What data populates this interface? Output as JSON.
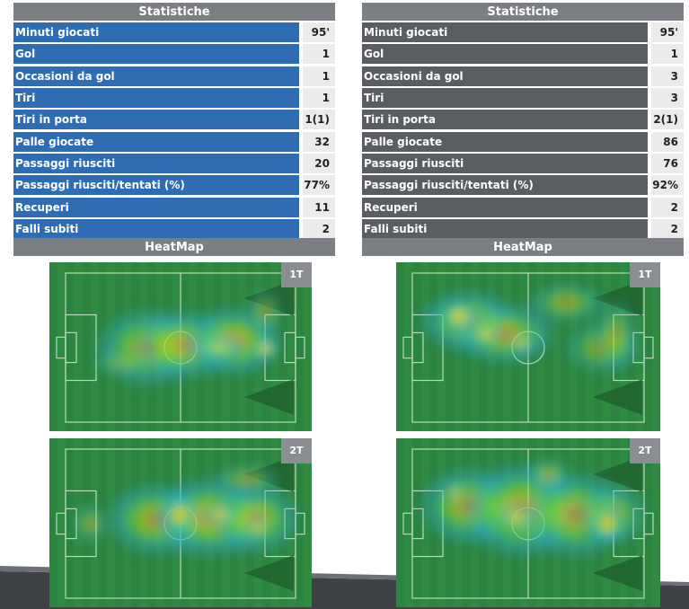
{
  "left": {
    "title": "Statistiche",
    "stats": [
      {
        "label": "Minuti giocati",
        "value": "95'"
      },
      {
        "label": "Gol",
        "value": "1"
      },
      {
        "label": "Occasioni da gol",
        "value": "1"
      },
      {
        "label": "Tiri",
        "value": "1"
      },
      {
        "label": "Tiri in porta",
        "value": "1(1)"
      },
      {
        "label": "Palle giocate",
        "value": "32"
      },
      {
        "label": "Passaggi riusciti",
        "value": "20"
      },
      {
        "label": "Passaggi riusciti/tentati (%)",
        "value": "77%"
      },
      {
        "label": "Recuperi",
        "value": "11"
      },
      {
        "label": "Falli subiti",
        "value": "2"
      }
    ],
    "heatmap_title": "HeatMap",
    "halves": [
      {
        "label": "1T"
      },
      {
        "label": "2T"
      }
    ]
  },
  "right": {
    "title": "Statistiche",
    "stats": [
      {
        "label": "Minuti giocati",
        "value": "95'"
      },
      {
        "label": "Gol",
        "value": "1"
      },
      {
        "label": "Occasioni da gol",
        "value": "3"
      },
      {
        "label": "Tiri",
        "value": "3"
      },
      {
        "label": "Tiri in porta",
        "value": "2(1)"
      },
      {
        "label": "Palle giocate",
        "value": "86"
      },
      {
        "label": "Passaggi riusciti",
        "value": "76"
      },
      {
        "label": "Passaggi riusciti/tentati (%)",
        "value": "92%"
      },
      {
        "label": "Recuperi",
        "value": "2"
      },
      {
        "label": "Falli subiti",
        "value": "2"
      }
    ],
    "heatmap_title": "HeatMap",
    "halves": [
      {
        "label": "1T"
      },
      {
        "label": "2T"
      }
    ]
  },
  "colors": {
    "left_label_bg": "#2e6db4",
    "right_label_bg": "#5a5d61",
    "header_bg": "#7b7f84",
    "value_bg": "#ebebeb",
    "pitch_green": "#2f8a42"
  }
}
